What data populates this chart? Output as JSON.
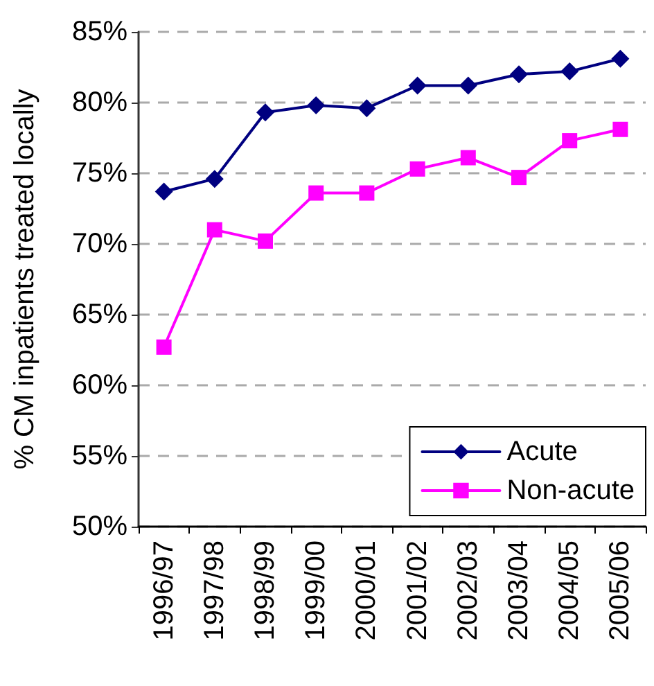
{
  "chart_data": {
    "type": "line",
    "ylabel": "% CM inpatients treated locally",
    "categories": [
      "1996/97",
      "1997/98",
      "1998/99",
      "1999/00",
      "2000/01",
      "2001/02",
      "2002/03",
      "2003/04",
      "2004/05",
      "2005/06"
    ],
    "series": [
      {
        "name": "Acute",
        "color": "#000080",
        "marker": "diamond",
        "values": [
          73.7,
          74.6,
          79.3,
          79.8,
          79.6,
          81.2,
          81.2,
          82.0,
          82.2,
          83.1
        ]
      },
      {
        "name": "Non-acute",
        "color": "#ff00ff",
        "marker": "square",
        "values": [
          62.7,
          71.0,
          70.2,
          73.6,
          73.6,
          75.3,
          76.1,
          74.7,
          77.3,
          78.1
        ]
      }
    ],
    "ylim": [
      50,
      85
    ],
    "yticks": [
      {
        "value": 50,
        "label": "50%"
      },
      {
        "value": 55,
        "label": "55%"
      },
      {
        "value": 60,
        "label": "60%"
      },
      {
        "value": 65,
        "label": "65%"
      },
      {
        "value": 70,
        "label": "70%"
      },
      {
        "value": 75,
        "label": "75%"
      },
      {
        "value": 80,
        "label": "80%"
      },
      {
        "value": 85,
        "label": "85%"
      }
    ],
    "grid": "y",
    "legend": "bottom right",
    "line_style": "solid"
  }
}
